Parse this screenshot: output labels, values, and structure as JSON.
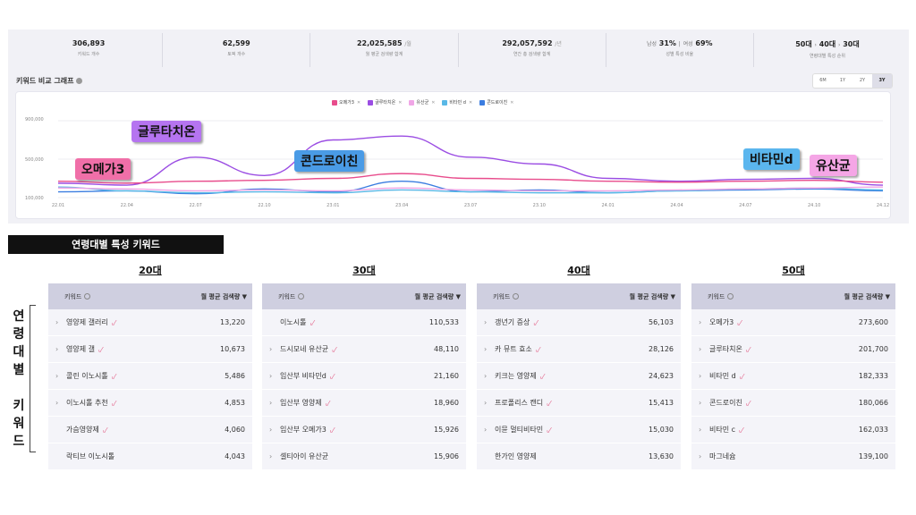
{
  "stats": [
    {
      "value": "306,893",
      "unit": "",
      "label": "키워드 개수"
    },
    {
      "value": "62,599",
      "unit": "",
      "label": "토픽 개수"
    },
    {
      "value": "22,025,585",
      "unit": "/월",
      "label": "월 평균 검색량 합계"
    },
    {
      "value": "292,057,592",
      "unit": "/년",
      "label": "연간 총 검색량 합계"
    },
    {
      "value_html_parts": [
        "남성",
        "31%",
        "|",
        "여성",
        "69%"
      ],
      "label": "성별 특성 비율"
    },
    {
      "value_html_parts": [
        "50대",
        "›",
        "40대",
        "›",
        "30대"
      ],
      "label": "연령대별 특성 순위"
    }
  ],
  "chart_title": "키워드 비교 그래프",
  "ranges": [
    "6M",
    "1Y",
    "2Y",
    "3Y"
  ],
  "active_range": "3Y",
  "legend": [
    {
      "name": "오메가3",
      "color": "#e84c8c"
    },
    {
      "name": "글루타치온",
      "color": "#9b4de3"
    },
    {
      "name": "유산균",
      "color": "#f0a6e6"
    },
    {
      "name": "비타민 d",
      "color": "#59b8e6"
    },
    {
      "name": "콘드로이친",
      "color": "#3b7de0"
    }
  ],
  "callouts": [
    {
      "text": "글루타치온",
      "color": "#b574f0"
    },
    {
      "text": "오메가3",
      "color": "#f06fa8"
    },
    {
      "text": "콘드로이친",
      "color": "#4a9be6"
    },
    {
      "text": "비타민d",
      "color": "#5bb6ee"
    },
    {
      "text": "유산균",
      "color": "#f5a6e6"
    }
  ],
  "chart_data": {
    "type": "line",
    "x": [
      "22.01",
      "22.04",
      "22.07",
      "22.10",
      "23.01",
      "23.04",
      "23.07",
      "23.10",
      "24.01",
      "24.04",
      "24.07",
      "24.10",
      "24.12"
    ],
    "ylim": [
      100000,
      900000
    ],
    "yticks": [
      "900,000",
      "500,000",
      "100,000"
    ],
    "series": [
      {
        "name": "글루타치온",
        "color": "#9b4de3",
        "values": [
          250000,
          230000,
          520000,
          330000,
          700000,
          740000,
          520000,
          450000,
          300000,
          270000,
          290000,
          300000,
          230000
        ]
      },
      {
        "name": "오메가3",
        "color": "#e84c8c",
        "values": [
          270000,
          250000,
          270000,
          280000,
          300000,
          350000,
          300000,
          290000,
          270000,
          260000,
          270000,
          280000,
          260000
        ]
      },
      {
        "name": "콘드로이친",
        "color": "#3b7de0",
        "values": [
          160000,
          170000,
          140000,
          190000,
          160000,
          270000,
          160000,
          180000,
          150000,
          170000,
          180000,
          190000,
          170000
        ]
      },
      {
        "name": "비타민 d",
        "color": "#59b8e6",
        "values": [
          210000,
          170000,
          150000,
          160000,
          150000,
          180000,
          160000,
          150000,
          150000,
          170000,
          190000,
          200000,
          180000
        ]
      },
      {
        "name": "유산균",
        "color": "#f0a6e6",
        "values": [
          200000,
          190000,
          170000,
          180000,
          170000,
          200000,
          180000,
          170000,
          170000,
          180000,
          190000,
          200000,
          210000
        ]
      }
    ]
  },
  "banner": "연령대별 특성 키워드",
  "vertical_label": [
    "연",
    "령",
    "대",
    "별",
    "",
    "키",
    "워",
    "드"
  ],
  "table_header": {
    "keyword": "키워드",
    "metric": "월 평균 검색량"
  },
  "tables": [
    {
      "age": "20대",
      "rows": [
        {
          "kw": "영양제 갤러리",
          "v": "13,220",
          "chev": true,
          "trend": true
        },
        {
          "kw": "영양제 갤",
          "v": "10,673",
          "chev": true,
          "trend": true
        },
        {
          "kw": "콜린 이노시톨",
          "v": "5,486",
          "chev": true,
          "trend": true
        },
        {
          "kw": "이노시톨 추천",
          "v": "4,853",
          "chev": true,
          "trend": true
        },
        {
          "kw": "가슴영양제",
          "v": "4,060",
          "chev": false,
          "trend": true
        },
        {
          "kw": "락티브 이노시톨",
          "v": "4,043",
          "chev": false,
          "trend": false
        }
      ]
    },
    {
      "age": "30대",
      "rows": [
        {
          "kw": "이노시톨",
          "v": "110,533",
          "chev": false,
          "trend": true
        },
        {
          "kw": "드시모네 유산균",
          "v": "48,110",
          "chev": true,
          "trend": true
        },
        {
          "kw": "임산부 비타민d",
          "v": "21,160",
          "chev": true,
          "trend": true
        },
        {
          "kw": "임산부 영양제",
          "v": "18,960",
          "chev": true,
          "trend": true
        },
        {
          "kw": "임산부 오메가3",
          "v": "15,926",
          "chev": true,
          "trend": true
        },
        {
          "kw": "셀티아이 유산균",
          "v": "15,906",
          "chev": true,
          "trend": false
        }
      ]
    },
    {
      "age": "40대",
      "rows": [
        {
          "kw": "갱년기 증상",
          "v": "56,103",
          "chev": true,
          "trend": true
        },
        {
          "kw": "카 뮤트 효소",
          "v": "28,126",
          "chev": true,
          "trend": true
        },
        {
          "kw": "키크는 영양제",
          "v": "24,623",
          "chev": true,
          "trend": true
        },
        {
          "kw": "프로폴리스 캔디",
          "v": "15,413",
          "chev": true,
          "trend": true
        },
        {
          "kw": "이뮨 멀티비타민",
          "v": "15,030",
          "chev": true,
          "trend": true
        },
        {
          "kw": "한가인 영양제",
          "v": "13,630",
          "chev": false,
          "trend": false
        }
      ]
    },
    {
      "age": "50대",
      "rows": [
        {
          "kw": "오메가3",
          "v": "273,600",
          "chev": true,
          "trend": true
        },
        {
          "kw": "글루타치온",
          "v": "201,700",
          "chev": true,
          "trend": true
        },
        {
          "kw": "비타민 d",
          "v": "182,333",
          "chev": true,
          "trend": true
        },
        {
          "kw": "콘드로이친",
          "v": "180,066",
          "chev": true,
          "trend": true
        },
        {
          "kw": "비타민 c",
          "v": "162,033",
          "chev": true,
          "trend": true
        },
        {
          "kw": "마그네슘",
          "v": "139,100",
          "chev": true,
          "trend": false
        }
      ]
    }
  ]
}
